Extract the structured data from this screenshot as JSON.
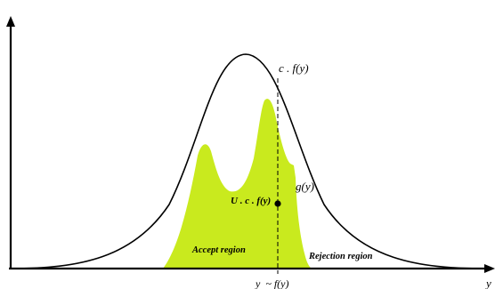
{
  "labels": {
    "envelope": "c . f(y)",
    "target": "g(y)",
    "uniform_point": "U . c . f(y)",
    "accept": "Accept region",
    "reject": "Rejection region",
    "sample": "y  ~ f(y)",
    "x_axis": "y"
  },
  "colors": {
    "accept_fill": "#c9ea1e",
    "curve": "#000000"
  }
}
